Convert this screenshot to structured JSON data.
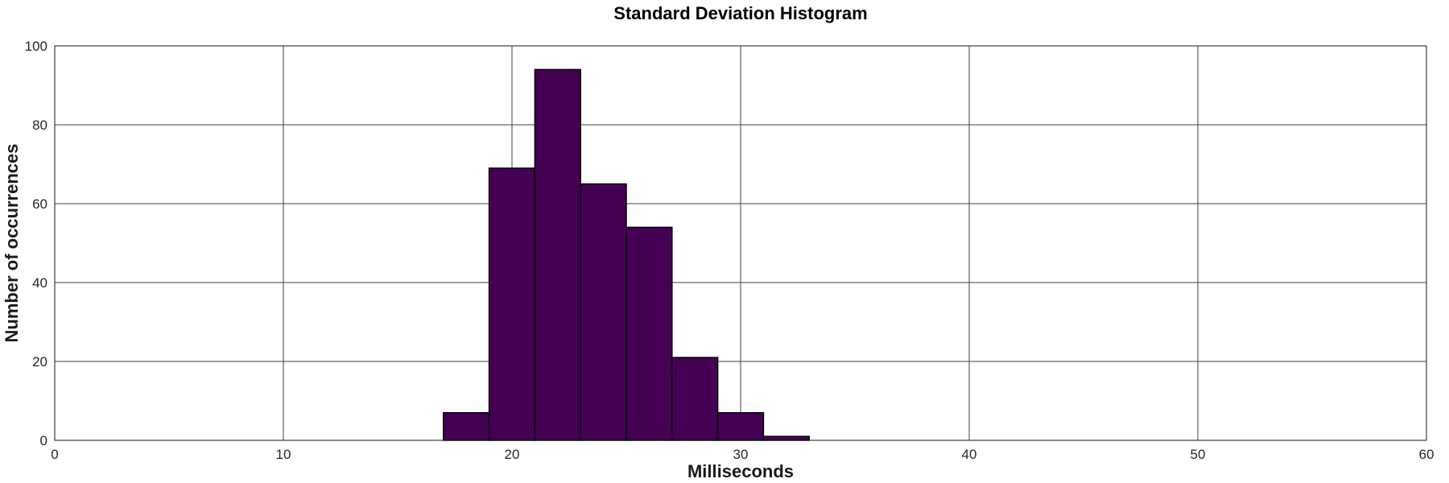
{
  "page": {
    "background": "#ffffff"
  },
  "chart_data": {
    "type": "bar",
    "chart_kind": "histogram",
    "title": "Standard Deviation Histogram",
    "xlabel": "Milliseconds",
    "ylabel": "Number of occurrences",
    "bin_edges": [
      17,
      19,
      21,
      23,
      25,
      27,
      29,
      31,
      33
    ],
    "counts": [
      7,
      69,
      94,
      65,
      54,
      21,
      7,
      1
    ],
    "xlim": [
      0,
      60
    ],
    "ylim": [
      0,
      100
    ],
    "xticks": [
      0,
      10,
      20,
      30,
      40,
      50,
      60
    ],
    "yticks": [
      0,
      20,
      40,
      60,
      80,
      100
    ],
    "xtick_labels": [
      "0",
      "10",
      "20",
      "30",
      "40",
      "50",
      "60"
    ],
    "ytick_labels": [
      "0",
      "20",
      "40",
      "60",
      "80",
      "100"
    ],
    "grid": true,
    "legend": "none",
    "colors": {
      "bar_fill": "#440154",
      "bar_edge": "#000000",
      "grid_line": "#404040",
      "axis_box": "#1a1a1a",
      "tick_text": "#262626",
      "label_text": "#1a1a1a",
      "background": "#ffffff"
    }
  }
}
